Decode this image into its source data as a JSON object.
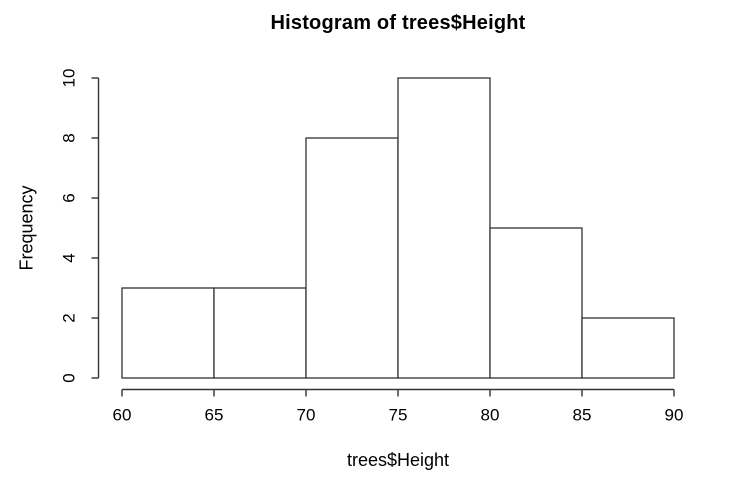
{
  "chart_data": {
    "type": "bar",
    "subtype": "histogram",
    "title": "Histogram of trees$Height",
    "xlabel": "trees$Height",
    "ylabel": "Frequency",
    "bin_edges": [
      60,
      65,
      70,
      75,
      80,
      85,
      90
    ],
    "counts": [
      3,
      3,
      8,
      10,
      5,
      2
    ],
    "x_ticks": [
      60,
      65,
      70,
      75,
      80,
      85,
      90
    ],
    "y_ticks": [
      0,
      2,
      4,
      6,
      8,
      10
    ],
    "xlim": [
      60,
      90
    ],
    "ylim": [
      0,
      10
    ],
    "grid": "off",
    "legend": "none",
    "bar_fill": "#ffffff",
    "line_color": "#333333",
    "text_color": "#000000",
    "background": "#ffffff"
  }
}
